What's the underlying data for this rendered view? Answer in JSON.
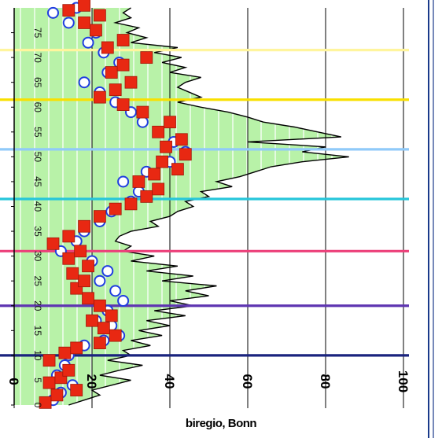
{
  "chart_data": {
    "type": "area",
    "title": "",
    "xlabel": "biregio, Bonn",
    "ylabel": "",
    "colors": {
      "fill": "#b8f2a8",
      "grid": "#000000",
      "frame": "#1a3a8a",
      "circle": "#1f3de0",
      "square": "#e82812"
    },
    "x_axis": {
      "range": [
        0,
        100
      ],
      "ticks": [
        0,
        20,
        40,
        60,
        80,
        100
      ],
      "tick_labels": [
        "0",
        "20",
        "40",
        "60",
        "80",
        "100"
      ]
    },
    "y_axis": {
      "range": [
        0,
        80
      ],
      "ticks": [
        0,
        5,
        10,
        15,
        20,
        25,
        30,
        35,
        40,
        45,
        50,
        55,
        60,
        65,
        70,
        75
      ],
      "tick_labels": [
        "0",
        "5",
        "10",
        "15",
        "20",
        "25",
        "30",
        "35",
        "40",
        "45",
        "50",
        "55",
        "60",
        "65",
        "70",
        "75"
      ]
    },
    "horizontal_lines": [
      {
        "y": 10,
        "color": "#1a237e"
      },
      {
        "y": 20,
        "color": "#5e35b1"
      },
      {
        "y": 31,
        "color": "#ec407a"
      },
      {
        "y": 41.5,
        "color": "#26c6da"
      },
      {
        "y": 51.5,
        "color": "#90caf9"
      },
      {
        "y": 61.5,
        "color": "#f9e000"
      },
      {
        "y": 71.5,
        "color": "#fff59d"
      }
    ],
    "envelope": {
      "y": [
        0,
        1,
        2,
        3,
        4,
        5,
        6,
        7,
        8,
        9,
        10,
        11,
        12,
        13,
        14,
        15,
        16,
        17,
        18,
        19,
        20,
        21,
        22,
        23,
        24,
        25,
        26,
        27,
        28,
        29,
        30,
        31,
        32,
        33,
        34,
        35,
        36,
        37,
        38,
        39,
        40,
        41,
        42,
        43,
        44,
        45,
        46,
        47,
        48,
        49,
        50,
        51,
        52,
        53,
        54,
        55,
        56,
        57,
        58,
        59,
        60,
        61,
        62,
        63,
        64,
        65,
        66,
        67,
        68,
        69,
        70,
        71,
        72,
        73,
        74,
        75,
        76,
        77,
        78,
        79,
        80
      ],
      "x": [
        14,
        18,
        22,
        20,
        25,
        30,
        22,
        27,
        33,
        24,
        30,
        28,
        35,
        30,
        38,
        32,
        40,
        34,
        44,
        36,
        46,
        40,
        50,
        44,
        52,
        38,
        46,
        34,
        42,
        30,
        36,
        28,
        30,
        26,
        27,
        30,
        37,
        35,
        40,
        42,
        46,
        44,
        50,
        48,
        56,
        52,
        58,
        62,
        66,
        74,
        86,
        74,
        80,
        60,
        84,
        78,
        72,
        64,
        60,
        55,
        48,
        42,
        48,
        45,
        42,
        44,
        48,
        40,
        44,
        38,
        43,
        36,
        42,
        30,
        34,
        29,
        32,
        26,
        30,
        28,
        30
      ]
    },
    "series": [
      {
        "name": "",
        "marker": "circle",
        "points": [
          [
            10,
            1
          ],
          [
            12,
            2.5
          ],
          [
            15,
            4
          ],
          [
            11,
            6
          ],
          [
            13,
            8
          ],
          [
            14,
            10
          ],
          [
            18,
            12
          ],
          [
            23,
            13
          ],
          [
            27,
            14
          ],
          [
            25,
            16
          ],
          [
            21,
            17
          ],
          [
            24,
            19
          ],
          [
            28,
            21
          ],
          [
            26,
            23
          ],
          [
            22,
            25
          ],
          [
            24,
            27
          ],
          [
            20,
            29
          ],
          [
            12,
            31
          ],
          [
            16,
            33
          ],
          [
            18,
            35
          ],
          [
            22,
            37
          ],
          [
            25,
            39
          ],
          [
            30,
            41
          ],
          [
            32,
            43
          ],
          [
            28,
            45
          ],
          [
            34,
            47
          ],
          [
            40,
            49
          ],
          [
            44,
            51
          ],
          [
            41,
            53
          ],
          [
            37,
            55
          ],
          [
            33,
            57
          ],
          [
            30,
            59
          ],
          [
            26,
            61
          ],
          [
            22,
            63
          ],
          [
            18,
            65
          ],
          [
            24,
            67
          ],
          [
            27,
            69
          ],
          [
            23,
            71
          ],
          [
            19,
            73
          ],
          [
            21,
            75
          ],
          [
            14,
            77
          ],
          [
            10,
            79
          ],
          [
            16,
            80
          ]
        ]
      },
      {
        "name": "",
        "marker": "square",
        "points": [
          [
            8,
            0.5
          ],
          [
            11,
            2
          ],
          [
            16,
            3
          ],
          [
            9,
            4.5
          ],
          [
            12,
            5.5
          ],
          [
            14,
            7
          ],
          [
            9,
            9
          ],
          [
            13,
            10.5
          ],
          [
            16,
            11.5
          ],
          [
            22,
            12.5
          ],
          [
            26,
            14
          ],
          [
            23,
            15.5
          ],
          [
            20,
            17
          ],
          [
            25,
            18
          ],
          [
            22,
            20
          ],
          [
            19,
            21.5
          ],
          [
            16,
            23.5
          ],
          [
            18,
            25
          ],
          [
            15,
            26.5
          ],
          [
            19,
            28
          ],
          [
            14,
            29.5
          ],
          [
            17,
            31
          ],
          [
            10,
            32.5
          ],
          [
            14,
            34
          ],
          [
            18,
            36
          ],
          [
            22,
            38
          ],
          [
            26,
            39.5
          ],
          [
            30,
            40.5
          ],
          [
            34,
            42
          ],
          [
            37,
            43.5
          ],
          [
            32,
            45
          ],
          [
            36,
            46.5
          ],
          [
            42,
            47.5
          ],
          [
            38,
            49
          ],
          [
            44,
            50.5
          ],
          [
            39,
            52
          ],
          [
            43,
            53.5
          ],
          [
            37,
            55
          ],
          [
            40,
            57
          ],
          [
            33,
            59
          ],
          [
            28,
            60.5
          ],
          [
            22,
            62
          ],
          [
            26,
            63.5
          ],
          [
            30,
            65
          ],
          [
            25,
            67
          ],
          [
            28,
            68.5
          ],
          [
            34,
            70
          ],
          [
            24,
            72
          ],
          [
            28,
            73.5
          ],
          [
            21,
            75.5
          ],
          [
            18,
            77
          ],
          [
            22,
            78.5
          ],
          [
            14,
            79.5
          ],
          [
            18,
            80.5
          ]
        ]
      }
    ]
  }
}
